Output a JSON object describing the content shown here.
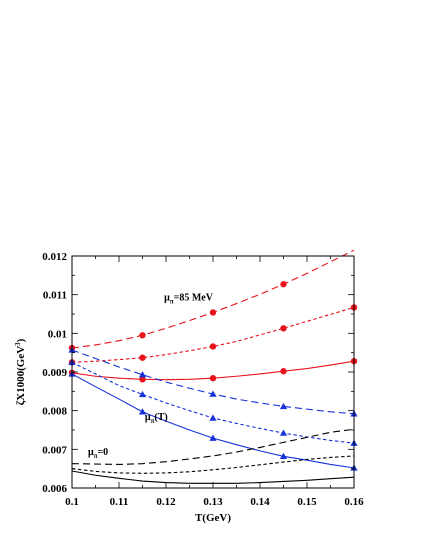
{
  "chart_data": {
    "type": "line",
    "title": "",
    "xlabel": "T(GeV)",
    "ylabel": "ζX1000(GeV",
    "ylabel_exp": "3",
    "ylabel_close": ")",
    "xlim": [
      0.1,
      0.16
    ],
    "ylim": [
      0.006,
      0.012
    ],
    "xticks": [
      0.1,
      0.11,
      0.12,
      0.13,
      0.14,
      0.15,
      0.16
    ],
    "xtick_labels": [
      "0.1",
      "0.11",
      "0.12",
      "0.13",
      "0.14",
      "0.15",
      "0.16"
    ],
    "yticks": [
      0.006,
      0.007,
      0.008,
      0.009,
      0.01,
      0.011,
      0.012
    ],
    "ytick_labels": [
      "0.006",
      "0.007",
      "0.008",
      "0.009",
      "0.01",
      "0.011",
      "0.012"
    ],
    "grid": false,
    "legend": "none",
    "colors": {
      "red": "#e8141c",
      "blue": "#1632d8",
      "black": "#000000"
    },
    "annotations": [
      {
        "id": "mu85",
        "main": "μ",
        "sub": "π",
        "rest": "=85 MeV",
        "at": [
          0.1196,
          0.01085
        ]
      },
      {
        "id": "muT",
        "main": "μ",
        "sub": "π",
        "rest": "(T)",
        "at": [
          0.1155,
          0.00776
        ]
      },
      {
        "id": "mu0",
        "main": "μ",
        "sub": "π",
        "rest": "=0",
        "at": [
          0.1034,
          0.00685
        ]
      }
    ],
    "series": [
      {
        "color": "red",
        "dash": "long",
        "marker": "circle",
        "x": [
          0.1,
          0.105,
          0.11,
          0.115,
          0.12,
          0.125,
          0.13,
          0.135,
          0.14,
          0.145,
          0.15,
          0.155,
          0.16
        ],
        "y": [
          0.00962,
          0.0097,
          0.00981,
          0.00995,
          0.01013,
          0.01033,
          0.01054,
          0.01077,
          0.01101,
          0.01127,
          0.01155,
          0.01185,
          0.01215
        ],
        "markers_x": [
          0.1,
          0.115,
          0.13,
          0.145
        ],
        "markers_y": [
          0.00962,
          0.00995,
          0.01054,
          0.01127
        ]
      },
      {
        "color": "red",
        "dash": "short",
        "marker": "circle",
        "x": [
          0.1,
          0.105,
          0.11,
          0.115,
          0.12,
          0.125,
          0.13,
          0.135,
          0.14,
          0.145,
          0.15,
          0.155,
          0.16
        ],
        "y": [
          0.00925,
          0.00928,
          0.00932,
          0.00937,
          0.00945,
          0.00955,
          0.00966,
          0.00979,
          0.00996,
          0.01013,
          0.01031,
          0.01049,
          0.01067
        ],
        "markers_x": [
          0.1,
          0.115,
          0.13,
          0.145,
          0.16
        ],
        "markers_y": [
          0.00925,
          0.00937,
          0.00966,
          0.01013,
          0.01067
        ]
      },
      {
        "color": "red",
        "dash": "solid",
        "marker": "circle",
        "x": [
          0.1,
          0.105,
          0.11,
          0.115,
          0.12,
          0.125,
          0.13,
          0.135,
          0.14,
          0.145,
          0.15,
          0.155,
          0.16
        ],
        "y": [
          0.00898,
          0.00889,
          0.00884,
          0.00881,
          0.0088,
          0.00881,
          0.00884,
          0.00889,
          0.00895,
          0.00902,
          0.00909,
          0.00918,
          0.00928
        ],
        "markers_x": [
          0.1,
          0.115,
          0.13,
          0.145,
          0.16
        ],
        "markers_y": [
          0.00898,
          0.00881,
          0.00884,
          0.00902,
          0.00928
        ]
      },
      {
        "color": "blue",
        "dash": "long",
        "marker": "triangle",
        "x": [
          0.1,
          0.105,
          0.11,
          0.115,
          0.12,
          0.125,
          0.13,
          0.135,
          0.14,
          0.145,
          0.15,
          0.155,
          0.16
        ],
        "y": [
          0.00957,
          0.00935,
          0.00913,
          0.00893,
          0.00874,
          0.00858,
          0.00843,
          0.0083,
          0.0082,
          0.00811,
          0.00804,
          0.00797,
          0.00792
        ],
        "markers_x": [
          0.1,
          0.115,
          0.13,
          0.145,
          0.16
        ],
        "markers_y": [
          0.00957,
          0.00893,
          0.00843,
          0.00811,
          0.00792
        ]
      },
      {
        "color": "blue",
        "dash": "short",
        "marker": "triangle",
        "x": [
          0.1,
          0.105,
          0.11,
          0.115,
          0.12,
          0.125,
          0.13,
          0.135,
          0.14,
          0.145,
          0.15,
          0.155,
          0.16
        ],
        "y": [
          0.00925,
          0.00895,
          0.00865,
          0.00842,
          0.0082,
          0.008,
          0.00781,
          0.00767,
          0.00754,
          0.00742,
          0.00732,
          0.00723,
          0.00716
        ],
        "markers_x": [
          0.1,
          0.115,
          0.13,
          0.145,
          0.16
        ],
        "markers_y": [
          0.00925,
          0.00842,
          0.00781,
          0.00742,
          0.00716
        ]
      },
      {
        "color": "blue",
        "dash": "solid",
        "marker": "triangle",
        "x": [
          0.1,
          0.105,
          0.11,
          0.115,
          0.12,
          0.125,
          0.13,
          0.135,
          0.14,
          0.145,
          0.15,
          0.155,
          0.16
        ],
        "y": [
          0.00895,
          0.00862,
          0.0083,
          0.00797,
          0.00773,
          0.0075,
          0.00729,
          0.00712,
          0.00696,
          0.00682,
          0.00672,
          0.00661,
          0.00652
        ],
        "markers_x": [
          0.1,
          0.115,
          0.13,
          0.145,
          0.16
        ],
        "markers_y": [
          0.00895,
          0.00797,
          0.00729,
          0.00682,
          0.00652
        ]
      },
      {
        "color": "black",
        "dash": "long",
        "marker": "none",
        "x": [
          0.1,
          0.105,
          0.11,
          0.115,
          0.12,
          0.125,
          0.13,
          0.135,
          0.14,
          0.145,
          0.15,
          0.155,
          0.16
        ],
        "y": [
          0.00663,
          0.00662,
          0.00661,
          0.00663,
          0.00668,
          0.00675,
          0.00683,
          0.00693,
          0.00705,
          0.00718,
          0.00731,
          0.00744,
          0.00752
        ]
      },
      {
        "color": "black",
        "dash": "short",
        "marker": "none",
        "x": [
          0.1,
          0.105,
          0.11,
          0.115,
          0.12,
          0.125,
          0.13,
          0.135,
          0.14,
          0.145,
          0.15,
          0.155,
          0.16
        ],
        "y": [
          0.0065,
          0.00643,
          0.00639,
          0.00638,
          0.00639,
          0.00642,
          0.00647,
          0.00653,
          0.0066,
          0.00667,
          0.00674,
          0.00679,
          0.00683
        ]
      },
      {
        "color": "black",
        "dash": "solid",
        "marker": "none",
        "x": [
          0.1,
          0.105,
          0.11,
          0.115,
          0.12,
          0.125,
          0.13,
          0.135,
          0.14,
          0.145,
          0.15,
          0.155,
          0.16
        ],
        "y": [
          0.00644,
          0.00633,
          0.00625,
          0.00618,
          0.00614,
          0.00612,
          0.00612,
          0.00612,
          0.00614,
          0.00617,
          0.0062,
          0.00624,
          0.00628
        ]
      }
    ]
  }
}
